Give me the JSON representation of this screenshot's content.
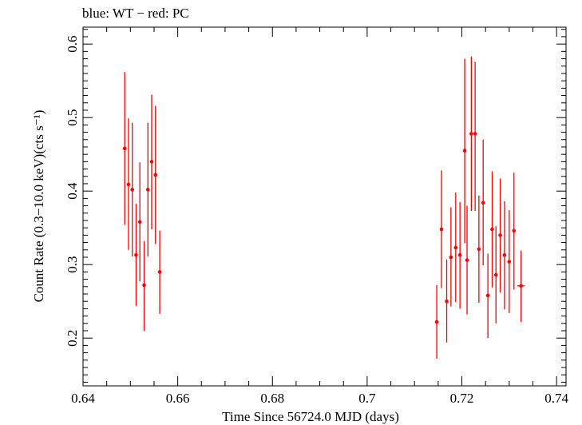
{
  "chart_data": {
    "type": "scatter",
    "title": "blue: WT − red: PC",
    "xlabel": "Time Since 56724.0 MJD (days)",
    "ylabel": "Count Rate (0.3−10.0 keV)(cts s⁻¹)",
    "xlim": [
      0.64,
      0.742
    ],
    "ylim": [
      0.135,
      0.623
    ],
    "xticks": [
      0.64,
      0.66,
      0.68,
      0.7,
      0.72,
      0.74
    ],
    "xtick_labels": [
      "0.64",
      "0.66",
      "0.68",
      "0.7",
      "0.72",
      "0.74"
    ],
    "yticks": [
      0.2,
      0.3,
      0.4,
      0.5,
      0.6
    ],
    "ytick_labels": [
      "0.2",
      "0.3",
      "0.4",
      "0.5",
      "0.6"
    ],
    "grid": false,
    "series": [
      {
        "color": "#ff0000",
        "points": [
          {
            "x": 0.6488,
            "y": 0.458,
            "ylo": 0.354,
            "yhi": 0.562,
            "xerr": 0.0003
          },
          {
            "x": 0.6496,
            "y": 0.409,
            "ylo": 0.32,
            "yhi": 0.499,
            "xerr": 0.0003
          },
          {
            "x": 0.6504,
            "y": 0.402,
            "ylo": 0.311,
            "yhi": 0.493,
            "xerr": 0.0003
          },
          {
            "x": 0.6512,
            "y": 0.313,
            "ylo": 0.244,
            "yhi": 0.383,
            "xerr": 0.0003
          },
          {
            "x": 0.652,
            "y": 0.358,
            "ylo": 0.277,
            "yhi": 0.439,
            "xerr": 0.0003
          },
          {
            "x": 0.6529,
            "y": 0.272,
            "ylo": 0.21,
            "yhi": 0.332,
            "xerr": 0.0003
          },
          {
            "x": 0.6537,
            "y": 0.402,
            "ylo": 0.311,
            "yhi": 0.493,
            "xerr": 0.0003
          },
          {
            "x": 0.6545,
            "y": 0.44,
            "ylo": 0.348,
            "yhi": 0.531,
            "xerr": 0.0003
          },
          {
            "x": 0.6553,
            "y": 0.422,
            "ylo": 0.328,
            "yhi": 0.516,
            "xerr": 0.0003
          },
          {
            "x": 0.6562,
            "y": 0.29,
            "ylo": 0.233,
            "yhi": 0.346,
            "xerr": 0.0004
          },
          {
            "x": 0.7147,
            "y": 0.222,
            "ylo": 0.172,
            "yhi": 0.272,
            "xerr": 0.0004
          },
          {
            "x": 0.7157,
            "y": 0.348,
            "ylo": 0.268,
            "yhi": 0.428,
            "xerr": 0.0003
          },
          {
            "x": 0.7168,
            "y": 0.25,
            "ylo": 0.194,
            "yhi": 0.307,
            "xerr": 0.0003
          },
          {
            "x": 0.7177,
            "y": 0.31,
            "ylo": 0.243,
            "yhi": 0.378,
            "xerr": 0.0003
          },
          {
            "x": 0.7187,
            "y": 0.323,
            "ylo": 0.249,
            "yhi": 0.398,
            "xerr": 0.0003
          },
          {
            "x": 0.7196,
            "y": 0.313,
            "ylo": 0.24,
            "yhi": 0.385,
            "xerr": 0.0003
          },
          {
            "x": 0.7206,
            "y": 0.455,
            "ylo": 0.329,
            "yhi": 0.58,
            "xerr": 0.0003
          },
          {
            "x": 0.7211,
            "y": 0.306,
            "ylo": 0.232,
            "yhi": 0.38,
            "xerr": 0.0003
          },
          {
            "x": 0.722,
            "y": 0.478,
            "ylo": 0.373,
            "yhi": 0.583,
            "xerr": 0.0003
          },
          {
            "x": 0.7228,
            "y": 0.478,
            "ylo": 0.373,
            "yhi": 0.576,
            "xerr": 0.0003
          },
          {
            "x": 0.7236,
            "y": 0.321,
            "ylo": 0.248,
            "yhi": 0.394,
            "xerr": 0.0003
          },
          {
            "x": 0.7245,
            "y": 0.384,
            "ylo": 0.299,
            "yhi": 0.47,
            "xerr": 0.0003
          },
          {
            "x": 0.7255,
            "y": 0.258,
            "ylo": 0.2,
            "yhi": 0.315,
            "xerr": 0.0004
          },
          {
            "x": 0.7264,
            "y": 0.348,
            "ylo": 0.269,
            "yhi": 0.427,
            "xerr": 0.0003
          },
          {
            "x": 0.7272,
            "y": 0.286,
            "ylo": 0.22,
            "yhi": 0.352,
            "xerr": 0.0003
          },
          {
            "x": 0.7281,
            "y": 0.34,
            "ylo": 0.262,
            "yhi": 0.417,
            "xerr": 0.0003
          },
          {
            "x": 0.729,
            "y": 0.313,
            "ylo": 0.239,
            "yhi": 0.386,
            "xerr": 0.0003
          },
          {
            "x": 0.73,
            "y": 0.304,
            "ylo": 0.234,
            "yhi": 0.374,
            "xerr": 0.0003
          },
          {
            "x": 0.731,
            "y": 0.346,
            "ylo": 0.266,
            "yhi": 0.425,
            "xerr": 0.0003
          },
          {
            "x": 0.7325,
            "y": 0.271,
            "ylo": 0.222,
            "yhi": 0.319,
            "xerr": 0.0008
          }
        ]
      }
    ]
  }
}
